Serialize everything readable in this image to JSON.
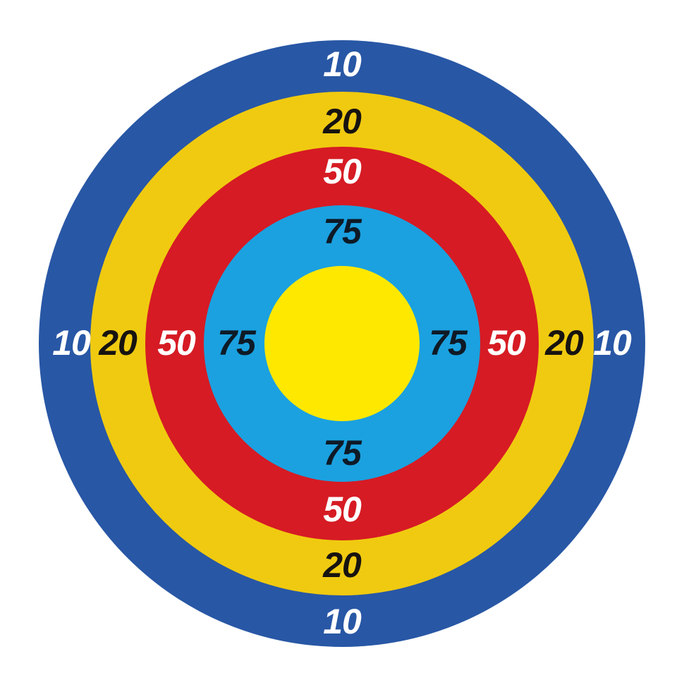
{
  "page": {
    "background_color": "#ffffff",
    "description": "Concentric circle scoring target"
  },
  "target": {
    "rings": [
      {
        "name": "outer-blue-ring",
        "score": "10",
        "color": "#2857a5",
        "label_color": "#ffffff"
      },
      {
        "name": "gold-ring",
        "score": "20",
        "color": "#f0ca10",
        "label_color": "#171310"
      },
      {
        "name": "red-ring",
        "score": "50",
        "color": "#d61b24",
        "label_color": "#ffffff"
      },
      {
        "name": "light-blue-ring",
        "score": "75",
        "color": "#1ba1e0",
        "label_color": "#0e1a26"
      }
    ],
    "bullseye": {
      "name": "bullseye",
      "color": "#ffe800"
    },
    "label_positions": [
      "top",
      "right",
      "bottom",
      "left"
    ]
  }
}
